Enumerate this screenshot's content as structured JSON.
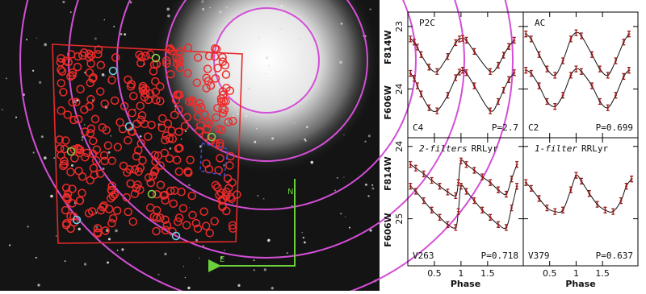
{
  "image": {
    "compass_north": "N",
    "compass_east": "E"
  },
  "chart_data": [
    {
      "type": "scatter",
      "label": "P2C",
      "star": "C4",
      "period": "P=2.7",
      "xlim": [
        0,
        2.17
      ],
      "xticks": [
        0.5,
        1,
        1.5
      ],
      "ylim": [
        24.78,
        22.77
      ],
      "yticks": [
        23,
        24
      ],
      "xtick_labels": false,
      "ytick_labels": true,
      "series": [
        {
          "name": "F814W",
          "color": "#9b1c1c",
          "x": [
            0.05,
            0.12,
            0.18,
            0.25,
            0.4,
            0.55,
            0.75,
            0.9,
            0.97,
            1.03,
            1.1,
            1.25,
            1.55,
            1.7,
            1.8,
            1.9,
            2.0
          ],
          "values": [
            23.2,
            23.25,
            23.33,
            23.45,
            23.65,
            23.72,
            23.48,
            23.26,
            23.2,
            23.19,
            23.22,
            23.4,
            23.72,
            23.62,
            23.46,
            23.32,
            23.22
          ]
        },
        {
          "name": "F606W",
          "color": "#9b1c1c",
          "x": [
            0.05,
            0.12,
            0.18,
            0.25,
            0.4,
            0.55,
            0.75,
            0.9,
            0.97,
            1.03,
            1.1,
            1.25,
            1.55,
            1.7,
            1.8,
            1.9,
            2.0
          ],
          "values": [
            23.75,
            23.83,
            23.95,
            24.08,
            24.3,
            24.35,
            24.1,
            23.82,
            23.73,
            23.7,
            23.74,
            23.95,
            24.35,
            24.2,
            24.02,
            23.85,
            23.74
          ]
        }
      ]
    },
    {
      "type": "scatter",
      "label": "AC",
      "star": "C2",
      "period": "P=0.699",
      "xlim": [
        0,
        2.17
      ],
      "xticks": [
        0.5,
        1,
        1.5
      ],
      "ylim": [
        24.78,
        22.77
      ],
      "yticks": [
        23,
        24
      ],
      "xtick_labels": false,
      "ytick_labels": false,
      "series": [
        {
          "color": "#9b1c1c",
          "x": [
            0.05,
            0.15,
            0.3,
            0.45,
            0.6,
            0.75,
            0.9,
            1.0,
            1.1,
            1.3,
            1.45,
            1.6,
            1.75,
            1.9,
            2.0
          ],
          "values": [
            23.12,
            23.2,
            23.45,
            23.68,
            23.78,
            23.55,
            23.2,
            23.1,
            23.15,
            23.45,
            23.68,
            23.78,
            23.55,
            23.25,
            23.12
          ]
        },
        {
          "color": "#9b1c1c",
          "x": [
            0.05,
            0.15,
            0.3,
            0.45,
            0.6,
            0.75,
            0.9,
            1.0,
            1.1,
            1.3,
            1.45,
            1.6,
            1.75,
            1.9,
            2.0
          ],
          "values": [
            23.7,
            23.75,
            23.95,
            24.2,
            24.28,
            24.1,
            23.78,
            23.68,
            23.72,
            23.95,
            24.2,
            24.3,
            24.1,
            23.8,
            23.7
          ]
        }
      ]
    },
    {
      "type": "scatter",
      "label_italic": "2-filters",
      "label": "RRLyr",
      "star": "V263",
      "period": "P=0.718",
      "xlabel": "Phase",
      "xlim": [
        0,
        2.17
      ],
      "xticks": [
        0.5,
        1,
        1.5
      ],
      "ylim": [
        25.65,
        23.88
      ],
      "yticks": [
        24,
        25
      ],
      "xtick_labels": true,
      "ytick_labels": true,
      "series": [
        {
          "name": "F814W",
          "color": "#9b1c1c",
          "x": [
            0.05,
            0.15,
            0.3,
            0.45,
            0.6,
            0.75,
            0.9,
            0.95,
            1.0,
            1.1,
            1.25,
            1.4,
            1.55,
            1.7,
            1.85,
            1.95,
            2.05
          ],
          "values": [
            24.25,
            24.3,
            24.38,
            24.47,
            24.55,
            24.63,
            24.68,
            24.5,
            24.2,
            24.25,
            24.33,
            24.42,
            24.5,
            24.6,
            24.66,
            24.45,
            24.25
          ]
        },
        {
          "name": "F606W",
          "color": "#9b1c1c",
          "x": [
            0.05,
            0.15,
            0.3,
            0.45,
            0.6,
            0.75,
            0.9,
            0.95,
            1.0,
            1.1,
            1.25,
            1.4,
            1.55,
            1.7,
            1.85,
            1.95,
            2.05
          ],
          "values": [
            24.55,
            24.62,
            24.75,
            24.88,
            24.98,
            25.08,
            25.12,
            24.9,
            24.55,
            24.62,
            24.75,
            24.88,
            24.98,
            25.08,
            25.12,
            24.85,
            24.55
          ]
        }
      ]
    },
    {
      "type": "scatter",
      "label_italic": "1-filter",
      "label": "RRLyr",
      "star": "V379",
      "period": "P=0.637",
      "xlabel": "Phase",
      "xlim": [
        0,
        2.17
      ],
      "xticks": [
        0.5,
        1,
        1.5
      ],
      "ylim": [
        25.65,
        23.88
      ],
      "yticks": [
        24,
        25
      ],
      "xtick_labels": true,
      "ytick_labels": false,
      "series": [
        {
          "color": "#9b1c1c",
          "x": [
            0.05,
            0.15,
            0.3,
            0.45,
            0.6,
            0.75,
            0.9,
            1.0,
            1.1,
            1.25,
            1.4,
            1.55,
            1.7,
            1.85,
            1.95,
            2.05
          ],
          "values": [
            24.5,
            24.58,
            24.72,
            24.85,
            24.9,
            24.88,
            24.6,
            24.4,
            24.48,
            24.65,
            24.8,
            24.88,
            24.9,
            24.75,
            24.55,
            24.45
          ]
        }
      ]
    }
  ]
}
